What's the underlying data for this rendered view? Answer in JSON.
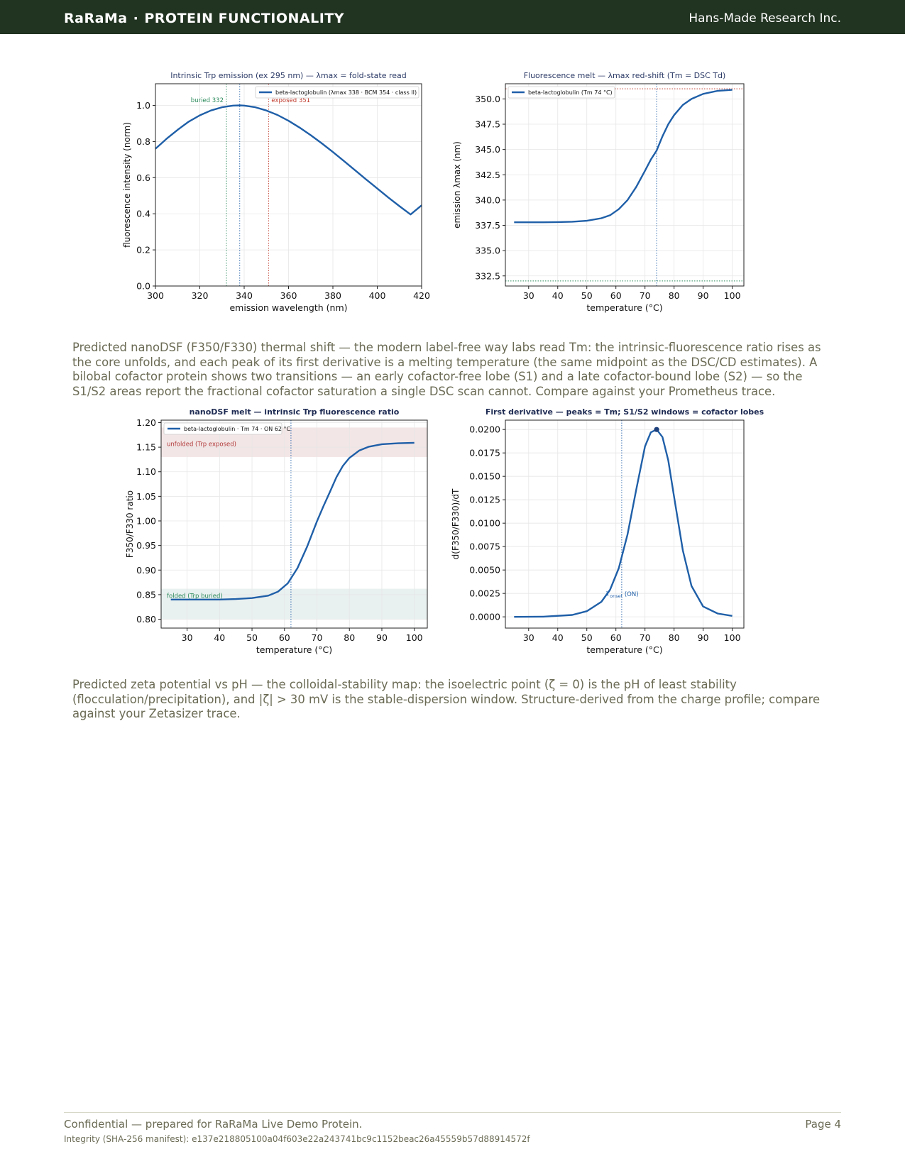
{
  "header": {
    "brand": "RaRaMa",
    "separator": "·",
    "section": "PROTEIN FUNCTIONALITY",
    "company": "Hans-Made Research Inc.",
    "bar_color": "#213321"
  },
  "captions": {
    "nanodsf": "Predicted nanoDSF (F350/F330) thermal shift — the modern label-free way labs read Tm: the intrinsic-fluorescence ratio rises as the core unfolds, and each peak of its first derivative is a melting temperature (the same midpoint as the DSC/CD estimates). A bilobal cofactor protein shows two transitions — an early cofactor-free lobe (S1) and a late cofactor-bound lobe (S2) — so the S1/S2 areas report the fractional cofactor saturation a single DSC scan cannot. Compare against your Prometheus trace.",
    "zeta": "Predicted zeta potential vs pH — the colloidal-stability map: the isoelectric point (ζ = 0) is the pH of least stability (flocculation/precipitation), and |ζ| > 30 mV is the stable-dispersion window. Structure-derived from the charge profile; compare against your Zetasizer trace."
  },
  "footer": {
    "confidential": "Confidential — prepared for RaRaMa Live Demo Protein.",
    "page": "Page 4",
    "integrity": "Integrity (SHA-256 manifest): e137e218805100a04f603e22a243741bc9c1152beac26a45559b57d88914572f"
  },
  "chart_data": [
    {
      "id": "emission",
      "type": "line",
      "title": "Intrinsic Trp emission (ex 295 nm) — λmax = fold-state read",
      "xlabel": "emission wavelength (nm)",
      "ylabel": "fluorescence intensity (norm)",
      "xlim": [
        300,
        420
      ],
      "ylim": [
        0,
        1.12
      ],
      "xticks": [
        "300",
        "320",
        "340",
        "360",
        "380",
        "400",
        "420"
      ],
      "yticks": [
        "0.0",
        "0.2",
        "0.4",
        "0.6",
        "0.8",
        "1.0"
      ],
      "grid": true,
      "legend": "top-right",
      "series": [
        {
          "name": "beta-lactoglobulin (λmax 338 · BCM 354 · class II)",
          "color": "#1f5fa8",
          "x": [
            300,
            305,
            310,
            315,
            320,
            325,
            330,
            335,
            338,
            340,
            345,
            350,
            355,
            360,
            365,
            370,
            375,
            380,
            385,
            390,
            395,
            400,
            405,
            410,
            415,
            420
          ],
          "y": [
            0.76,
            0.815,
            0.865,
            0.91,
            0.945,
            0.972,
            0.99,
            0.999,
            1.0,
            0.999,
            0.99,
            0.972,
            0.947,
            0.915,
            0.877,
            0.835,
            0.79,
            0.742,
            0.692,
            0.641,
            0.59,
            0.54,
            0.49,
            0.442,
            0.396,
            0.447
          ]
        }
      ],
      "markers": [
        {
          "label": "buried 332",
          "x": 332,
          "color": "#2a8a5a"
        },
        {
          "label": "",
          "x": 338,
          "color": "#1f5fa8"
        },
        {
          "label": "exposed 351",
          "x": 351,
          "color": "#c0392b"
        }
      ]
    },
    {
      "id": "melt",
      "type": "line",
      "title": "Fluorescence melt — λmax red-shift (Tm = DSC Td)",
      "xlabel": "temperature (°C)",
      "ylabel": "emission λmax (nm)",
      "xlim": [
        22,
        104
      ],
      "ylim": [
        331.5,
        351.5
      ],
      "xticks": [
        "30",
        "40",
        "50",
        "60",
        "70",
        "80",
        "90",
        "100"
      ],
      "yticks": [
        "332.5",
        "335.0",
        "337.5",
        "340.0",
        "342.5",
        "345.0",
        "347.5",
        "350.0"
      ],
      "grid": true,
      "legend": "top-left",
      "series": [
        {
          "name": "beta-lactoglobulin (Tm 74 °C)",
          "color": "#1f5fa8",
          "x": [
            25,
            30,
            35,
            40,
            45,
            50,
            55,
            58,
            61,
            64,
            67,
            70,
            72,
            74,
            76,
            78,
            80,
            83,
            86,
            90,
            95,
            100
          ],
          "y": [
            337.8,
            337.8,
            337.8,
            337.82,
            337.86,
            337.95,
            338.2,
            338.5,
            339.1,
            340.0,
            341.3,
            342.9,
            344.0,
            344.9,
            346.3,
            347.5,
            348.4,
            349.4,
            350.0,
            350.5,
            350.8,
            350.9
          ]
        }
      ],
      "markers": [
        {
          "label": "",
          "x": 74,
          "color": "#1f5fa8"
        }
      ],
      "reference_lines": [
        {
          "y": 351.0,
          "color": "#c0392b"
        },
        {
          "y": 332.0,
          "color": "#2a8a5a"
        }
      ]
    },
    {
      "id": "nanodsf",
      "type": "line",
      "title": "nanoDSF melt — intrinsic Trp fluorescence ratio",
      "xlabel": "temperature (°C)",
      "ylabel": "F350/F330 ratio",
      "xlim": [
        22,
        104
      ],
      "ylim": [
        0.782,
        1.205
      ],
      "xticks": [
        "30",
        "40",
        "50",
        "60",
        "70",
        "80",
        "90",
        "100"
      ],
      "yticks": [
        "0.80",
        "0.85",
        "0.90",
        "0.95",
        "1.00",
        "1.05",
        "1.10",
        "1.15",
        "1.20"
      ],
      "grid": true,
      "legend": "top-left",
      "bands": [
        {
          "label": "unfolded (Trp exposed)",
          "y0": 1.13,
          "y1": 1.19,
          "color": "#f3e6e6",
          "text_color": "#b03a3a"
        },
        {
          "label": "folded (Trp buried)",
          "y0": 0.8,
          "y1": 0.862,
          "color": "#e9f0f0",
          "text_color": "#2a8a5a"
        }
      ],
      "series": [
        {
          "name": "beta-lactoglobulin · Tm 74 · ON 62 °C",
          "color": "#1f5fa8",
          "x": [
            25,
            30,
            35,
            40,
            45,
            50,
            55,
            58,
            61,
            64,
            67,
            70,
            72,
            74,
            76,
            78,
            80,
            83,
            86,
            90,
            95,
            100
          ],
          "y": [
            0.84,
            0.84,
            0.84,
            0.84,
            0.841,
            0.843,
            0.848,
            0.856,
            0.873,
            0.904,
            0.948,
            0.999,
            1.03,
            1.059,
            1.089,
            1.112,
            1.128,
            1.143,
            1.151,
            1.156,
            1.158,
            1.159
          ]
        }
      ],
      "markers": [
        {
          "label": "",
          "x": 62,
          "color": "#1f5fa8"
        }
      ]
    },
    {
      "id": "derivative",
      "type": "line",
      "title": "First derivative — peaks = Tm; S1/S2 windows = cofactor lobes",
      "xlabel": "temperature (°C)",
      "ylabel": "d(F350/F330)/dT",
      "xlim": [
        22,
        104
      ],
      "ylim": [
        -0.0012,
        0.021
      ],
      "xticks": [
        "30",
        "40",
        "50",
        "60",
        "70",
        "80",
        "90",
        "100"
      ],
      "yticks": [
        "0.0000",
        "0.0025",
        "0.0050",
        "0.0075",
        "0.0100",
        "0.0125",
        "0.0150",
        "0.0175",
        "0.0200"
      ],
      "grid": true,
      "series": [
        {
          "name": "",
          "color": "#1f5fa8",
          "x": [
            25,
            35,
            45,
            50,
            55,
            58,
            61,
            64,
            67,
            70,
            72,
            74,
            76,
            78,
            80,
            83,
            86,
            90,
            95,
            100
          ],
          "y": [
            0.0,
            2e-05,
            0.0002,
            0.0006,
            0.0016,
            0.0029,
            0.0052,
            0.0088,
            0.0136,
            0.0182,
            0.0197,
            0.02,
            0.0192,
            0.0167,
            0.0128,
            0.0071,
            0.0033,
            0.0011,
            0.00035,
            0.0001
          ]
        }
      ],
      "peak": {
        "x": 74,
        "y": 0.02
      },
      "markers": [
        {
          "label": "T",
          "sub": "onset",
          "suffix": "(ON)",
          "x": 62,
          "color": "#1f5fa8"
        }
      ]
    }
  ]
}
